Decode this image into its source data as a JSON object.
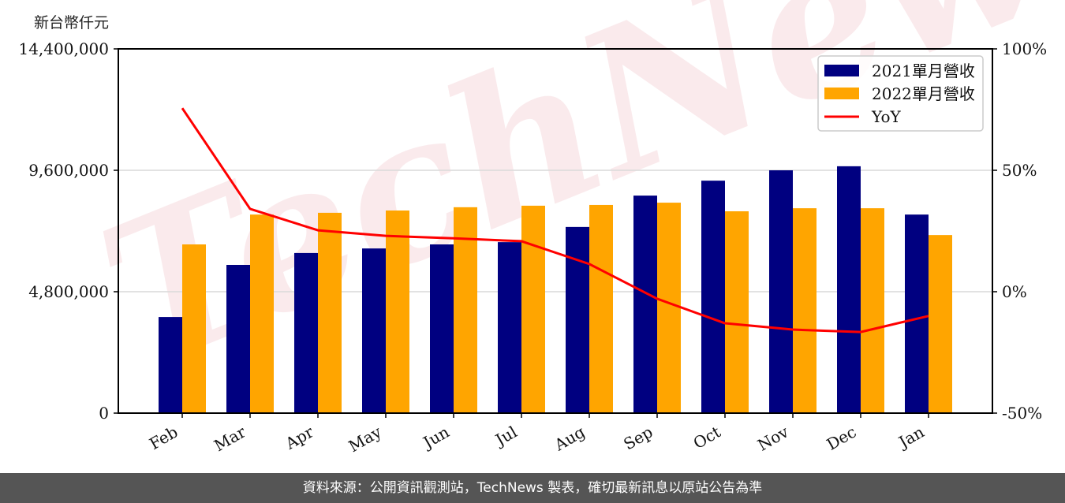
{
  "unit_label": "新台幣仟元",
  "footer": "資料來源：公開資訊觀測站，TechNews 製表，確切最新訊息以原站公告為準",
  "watermark": "TechNews",
  "colors": {
    "bar_2021": "#000080",
    "bar_2022": "#FFA500",
    "yoy_line": "#FF0000",
    "grid": "#d9d9d9",
    "footer_bg": "#555555"
  },
  "chart_data": {
    "type": "bar",
    "title": "",
    "xlabel": "",
    "ylabel": "新台幣仟元",
    "y2label": "",
    "categories": [
      "Feb",
      "Mar",
      "Apr",
      "May",
      "Jun",
      "Jul",
      "Aug",
      "Sep",
      "Oct",
      "Nov",
      "Dec",
      "Jan"
    ],
    "series": [
      {
        "name": "2021單月營收",
        "type": "bar",
        "axis": "left",
        "color": "#000080",
        "values": [
          3800000,
          5860000,
          6330000,
          6510000,
          6670000,
          6760000,
          7360000,
          8600000,
          9190000,
          9600000,
          9760000,
          7850000
        ]
      },
      {
        "name": "2022單月營收",
        "type": "bar",
        "axis": "left",
        "color": "#FFA500",
        "values": [
          6670000,
          7850000,
          7920000,
          8010000,
          8140000,
          8200000,
          8230000,
          8320000,
          7980000,
          8100000,
          8100000,
          7040000
        ]
      },
      {
        "name": "YoY",
        "type": "line",
        "axis": "right",
        "color": "#FF0000",
        "values": [
          75.6,
          34.1,
          25.3,
          23.0,
          22.0,
          20.8,
          11.4,
          -2.9,
          -13.0,
          -15.6,
          -16.6,
          -10.0
        ]
      }
    ],
    "ylim": [
      0,
      14400000
    ],
    "yticks": [
      0,
      4800000,
      9600000,
      14400000
    ],
    "ytick_labels": [
      "0",
      "4,800,000",
      "9,600,000",
      "14,400,000"
    ],
    "y2lim": [
      -50,
      100
    ],
    "y2ticks": [
      -50,
      0,
      50,
      100
    ],
    "y2tick_labels": [
      "-50%",
      "0%",
      "50%",
      "100%"
    ],
    "grid": true,
    "legend_position": "upper right",
    "legend": [
      "2021單月營收",
      "2022單月營收",
      "YoY"
    ]
  }
}
